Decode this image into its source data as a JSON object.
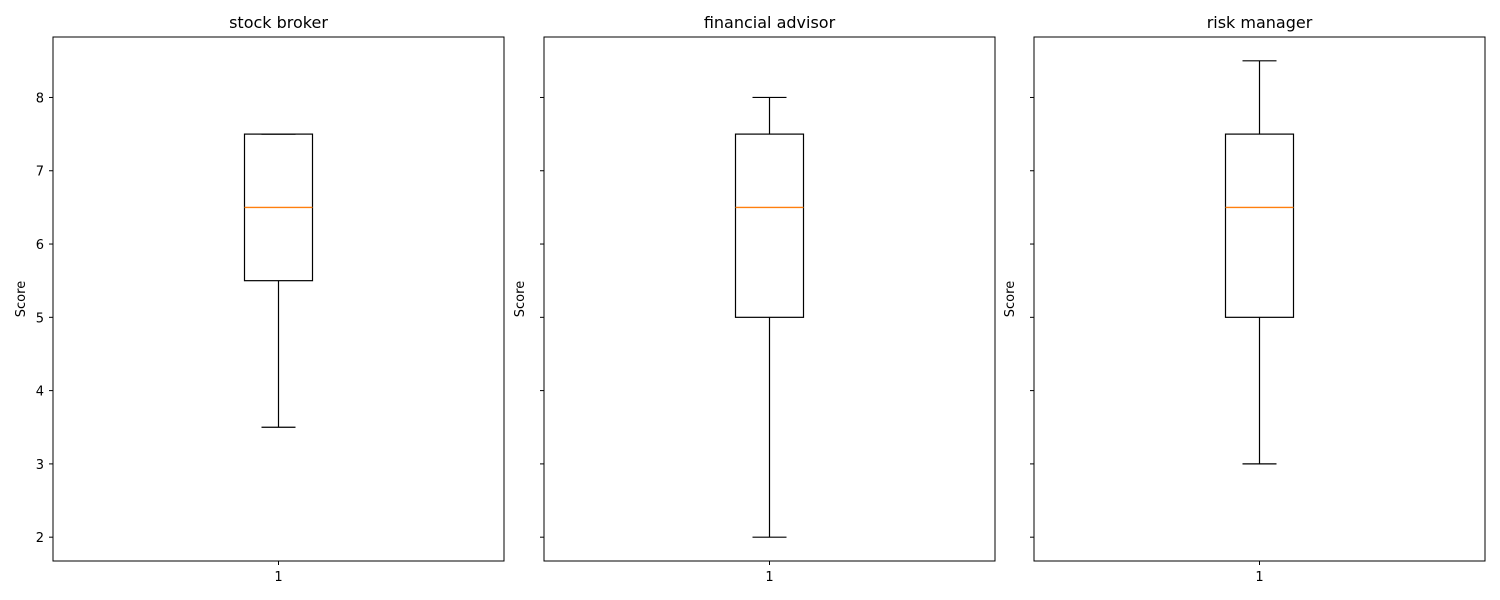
{
  "chart_data": {
    "type": "box",
    "ylim": [
      1.675,
      8.825
    ],
    "y_ticks": [
      2,
      3,
      4,
      5,
      6,
      7,
      8
    ],
    "shared_y": true,
    "grid": false,
    "colors": {
      "box": "#000000",
      "median": "#ff7f0e",
      "frame": "#000000"
    },
    "panels": [
      {
        "title": "stock broker",
        "ylabel": "Score",
        "x_tick_label": "1",
        "stats": {
          "whisker_low": 3.5,
          "q1": 5.5,
          "median": 6.5,
          "q3": 7.5,
          "whisker_high": 7.5
        }
      },
      {
        "title": "financial advisor",
        "ylabel": "Score",
        "x_tick_label": "1",
        "stats": {
          "whisker_low": 2.0,
          "q1": 5.0,
          "median": 6.5,
          "q3": 7.5,
          "whisker_high": 8.0
        }
      },
      {
        "title": "risk manager",
        "ylabel": "Score",
        "x_tick_label": "1",
        "stats": {
          "whisker_low": 3.0,
          "q1": 5.0,
          "median": 6.5,
          "q3": 7.5,
          "whisker_high": 8.5
        }
      }
    ]
  }
}
